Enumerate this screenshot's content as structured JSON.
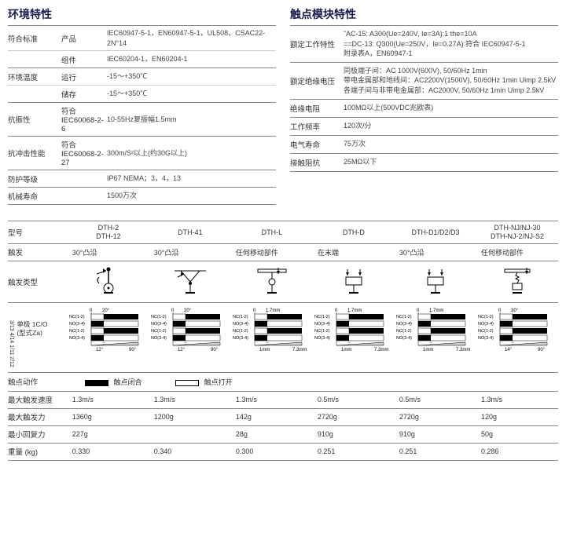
{
  "env": {
    "title": "环境特性",
    "rows": [
      {
        "label": "符合标准",
        "sub": "产品",
        "val": "IEC60947-5-1，EN60947-5-1，UL508，CSAC22-2N°14",
        "thick": false
      },
      {
        "label": "",
        "sub": "组件",
        "val": "IEC60204-1，EN60204-1",
        "thick": true
      },
      {
        "label": "环境温度",
        "sub": "运行",
        "val": "-15～+350℃",
        "thick": false
      },
      {
        "label": "",
        "sub": "储存",
        "val": "-15～+350℃",
        "thick": true
      },
      {
        "label": "抗振性",
        "sub": "符合IEC60068-2-6",
        "val": "10-55Hz复振幅1.5mm",
        "thick": true
      },
      {
        "label": "抗冲击性能",
        "sub": "符合IEC60068-2-27",
        "val": "300m/S²以上(约30G以上)",
        "thick": true
      },
      {
        "label": "防护等级",
        "sub": "",
        "val": "IP67 NEMA；3，4，13",
        "thick": true
      },
      {
        "label": "机械寿命",
        "sub": "",
        "val": "1500万次",
        "thick": true
      }
    ]
  },
  "contact": {
    "title": "触点模块特性",
    "rows": [
      {
        "label": "额定工作特性",
        "val": "˜AC-15: A300(Ue=240V, Ie=3A):1 the=10A\n==DC-13: Q300(Ue=250V，Ie=0.27A):符合 IEC60947-5-1\n附录表A，EN60947-1",
        "thick": true
      },
      {
        "label": "额定绝缘电压",
        "val": "同极端子间：AC 1000V(600V), 50/60Hz 1min\n带电金属部和地线间：AC2200V(1500V), 50/60Hz 1min Uimp 2.5kV\n各端子间与非带电金属部：AC2000V, 50/60Hz 1min Uimp 2.5kV",
        "thick": true
      },
      {
        "label": "绝缘电阻",
        "val": "100MΩ以上(500VDC兆欧表)",
        "thick": true
      },
      {
        "label": "工作频率",
        "val": "120次/分",
        "thick": true
      },
      {
        "label": "电气寿命",
        "val": "75万次",
        "thick": true
      },
      {
        "label": "接触阻抗",
        "val": "25MΩ以下",
        "thick": true
      }
    ]
  },
  "table": {
    "headers": [
      "型号",
      "DTH-2\nDTH-12",
      "DTH-41",
      "DTH-L",
      "DTH-D",
      "DTH-D1/D2/D3",
      "DTH-NJ/NJ-30\nDTH-NJ-2/NJ-S2"
    ],
    "trigger": {
      "label": "触发",
      "vals": [
        "30°凸沿",
        "30°凸沿",
        "任何移动部件",
        "在末端",
        "30°凸沿",
        "任何移动部件"
      ]
    },
    "trigtype_label": "触发类型",
    "timing_label": "单极 1C/O\n(型式Za)",
    "timing_side": "3/13  4/14\n1/11  2/12",
    "action": {
      "label": "触点动作",
      "closed": "触点闭合",
      "open": "触点打开"
    },
    "maxspeed": {
      "label": "最大触发速度",
      "vals": [
        "1.3m/s",
        "1.3m/s",
        "1.3m/s",
        "0.5m/s",
        "0.5m/s",
        "1.3m/s"
      ]
    },
    "maxforce": {
      "label": "最大触发力",
      "vals": [
        "1360g",
        "1200g",
        "142g",
        "2720g",
        "2720g",
        "120g"
      ]
    },
    "minret": {
      "label": "最小回复力",
      "vals": [
        "227g",
        "",
        "28g",
        "910g",
        "910g",
        "50g"
      ]
    },
    "weight": {
      "label": "重量 (kg)",
      "vals": [
        "0.330",
        "0.340",
        "0.300",
        "0.251",
        "0.251",
        "0.286"
      ]
    },
    "timing": [
      {
        "l": "0",
        "r": "20°",
        "bl": "12°",
        "br": "90°"
      },
      {
        "l": "0",
        "r": "20°",
        "bl": "12°",
        "br": "90°"
      },
      {
        "l": "0",
        "r": "1.7mm",
        "bl": "1mm",
        "br": "7.3mm"
      },
      {
        "l": "0",
        "r": "1.7mm",
        "bl": "1mm",
        "br": "7.3mm"
      },
      {
        "l": "0",
        "r": "1.7mm",
        "bl": "1mm",
        "br": "7.3mm"
      },
      {
        "l": "0",
        "r": "30°",
        "bl": "14°",
        "br": "90°"
      }
    ],
    "timing_labels": [
      "NC(1-2)",
      "NO(3-4)",
      "NC(1-2)",
      "NO(3-4)"
    ]
  },
  "colors": {
    "border": "#888",
    "line": "#ccc",
    "text": "#333"
  }
}
